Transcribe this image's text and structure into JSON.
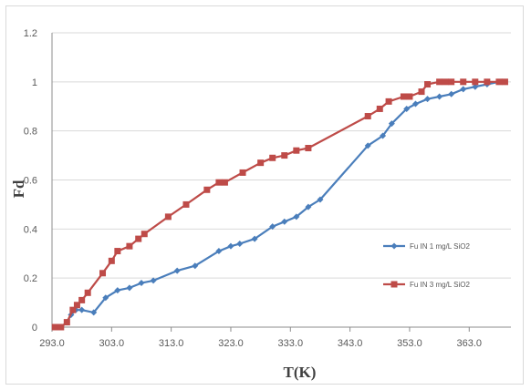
{
  "chart_data": {
    "type": "line",
    "xlabel": "T(K)",
    "ylabel": "Fd",
    "xlim": [
      293.0,
      370.0
    ],
    "ylim": [
      0,
      1.2
    ],
    "x_ticks": [
      "293.0",
      "303.0",
      "313.0",
      "323.0",
      "333.0",
      "343.0",
      "353.0",
      "363.0"
    ],
    "y_ticks": [
      "0",
      "0.2",
      "0.4",
      "0.6",
      "0.8",
      "1",
      "1.2"
    ],
    "grid": "horizontal",
    "legend_position": "right",
    "series": [
      {
        "name": "Fu IN 1  mg/L SiO2",
        "color": "#4a7ebb",
        "marker": "diamond",
        "x": [
          293.5,
          294.5,
          295.5,
          296.2,
          297,
          298,
          300,
          302,
          304,
          306,
          308,
          310,
          314,
          317,
          321,
          323,
          324.5,
          327,
          330,
          332,
          334,
          336,
          338,
          346,
          348.5,
          350,
          352.5,
          354,
          356,
          358,
          360,
          362,
          364,
          366,
          368,
          369
        ],
        "y": [
          0,
          0,
          0.02,
          0.05,
          0.07,
          0.07,
          0.06,
          0.12,
          0.15,
          0.16,
          0.18,
          0.19,
          0.23,
          0.25,
          0.31,
          0.33,
          0.34,
          0.36,
          0.41,
          0.43,
          0.45,
          0.49,
          0.52,
          0.74,
          0.78,
          0.83,
          0.89,
          0.91,
          0.93,
          0.94,
          0.95,
          0.97,
          0.98,
          0.99,
          1.0,
          1.0
        ]
      },
      {
        "name": "Fu IN 3  mg/L SiO2",
        "color": "#be4b48",
        "marker": "square",
        "x": [
          293.5,
          294.5,
          295.5,
          296.5,
          297.2,
          298,
          299,
          301.5,
          303,
          304,
          306,
          307.5,
          308.5,
          312.5,
          315.5,
          319,
          321,
          322,
          325,
          328,
          330,
          332,
          334,
          336,
          346,
          348,
          349.5,
          352,
          353,
          355,
          356,
          358,
          359,
          360,
          362,
          364,
          366,
          368,
          369
        ],
        "y": [
          0,
          0,
          0.02,
          0.07,
          0.09,
          0.11,
          0.14,
          0.22,
          0.27,
          0.31,
          0.33,
          0.36,
          0.38,
          0.45,
          0.5,
          0.56,
          0.59,
          0.59,
          0.63,
          0.67,
          0.69,
          0.7,
          0.72,
          0.73,
          0.86,
          0.89,
          0.92,
          0.94,
          0.94,
          0.96,
          0.99,
          1.0,
          1.0,
          1.0,
          1.0,
          1.0,
          1.0,
          1.0,
          1.0
        ]
      }
    ]
  }
}
